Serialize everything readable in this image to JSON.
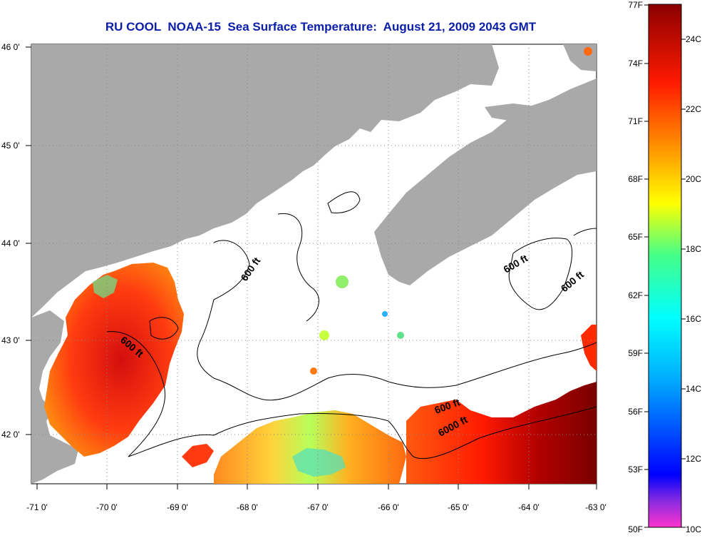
{
  "title": "RU COOL  NOAA-15  Sea Surface Temperature:  August 21, 2009 2043 GMT",
  "map": {
    "lon_ticks": [
      "-71 0'",
      "-70 0'",
      "-69 0'",
      "-68 0'",
      "-67 0'",
      "-66 0'",
      "-65 0'",
      "-64 0'",
      "-63 0'"
    ],
    "lat_ticks": [
      "46 0'",
      "45 0'",
      "44 0'",
      "43 0'",
      "42 0'"
    ],
    "contour_labels": {
      "c1": "600 ft",
      "c2": "600 ft",
      "c3": "600 ft",
      "c4": "600 ft",
      "c5": "600 ft",
      "c6": "6000 ft"
    },
    "colors": {
      "land": "#a9a9a9",
      "water_nodata": "#ffffff",
      "grid": "#888888"
    }
  },
  "colorbar": {
    "fahrenheit": [
      "77F",
      "74F",
      "71F",
      "68F",
      "65F",
      "62F",
      "59F",
      "56F",
      "53F",
      "50F"
    ],
    "celsius": [
      "24C",
      "22C",
      "20C",
      "18C",
      "16C",
      "14C",
      "12C",
      "10C"
    ],
    "stops": [
      "#ff33cc",
      "#6a1fd6",
      "#0000ff",
      "#00aaff",
      "#00ffff",
      "#44ff88",
      "#ffff00",
      "#ff9900",
      "#ff0000",
      "#8b0000"
    ]
  }
}
